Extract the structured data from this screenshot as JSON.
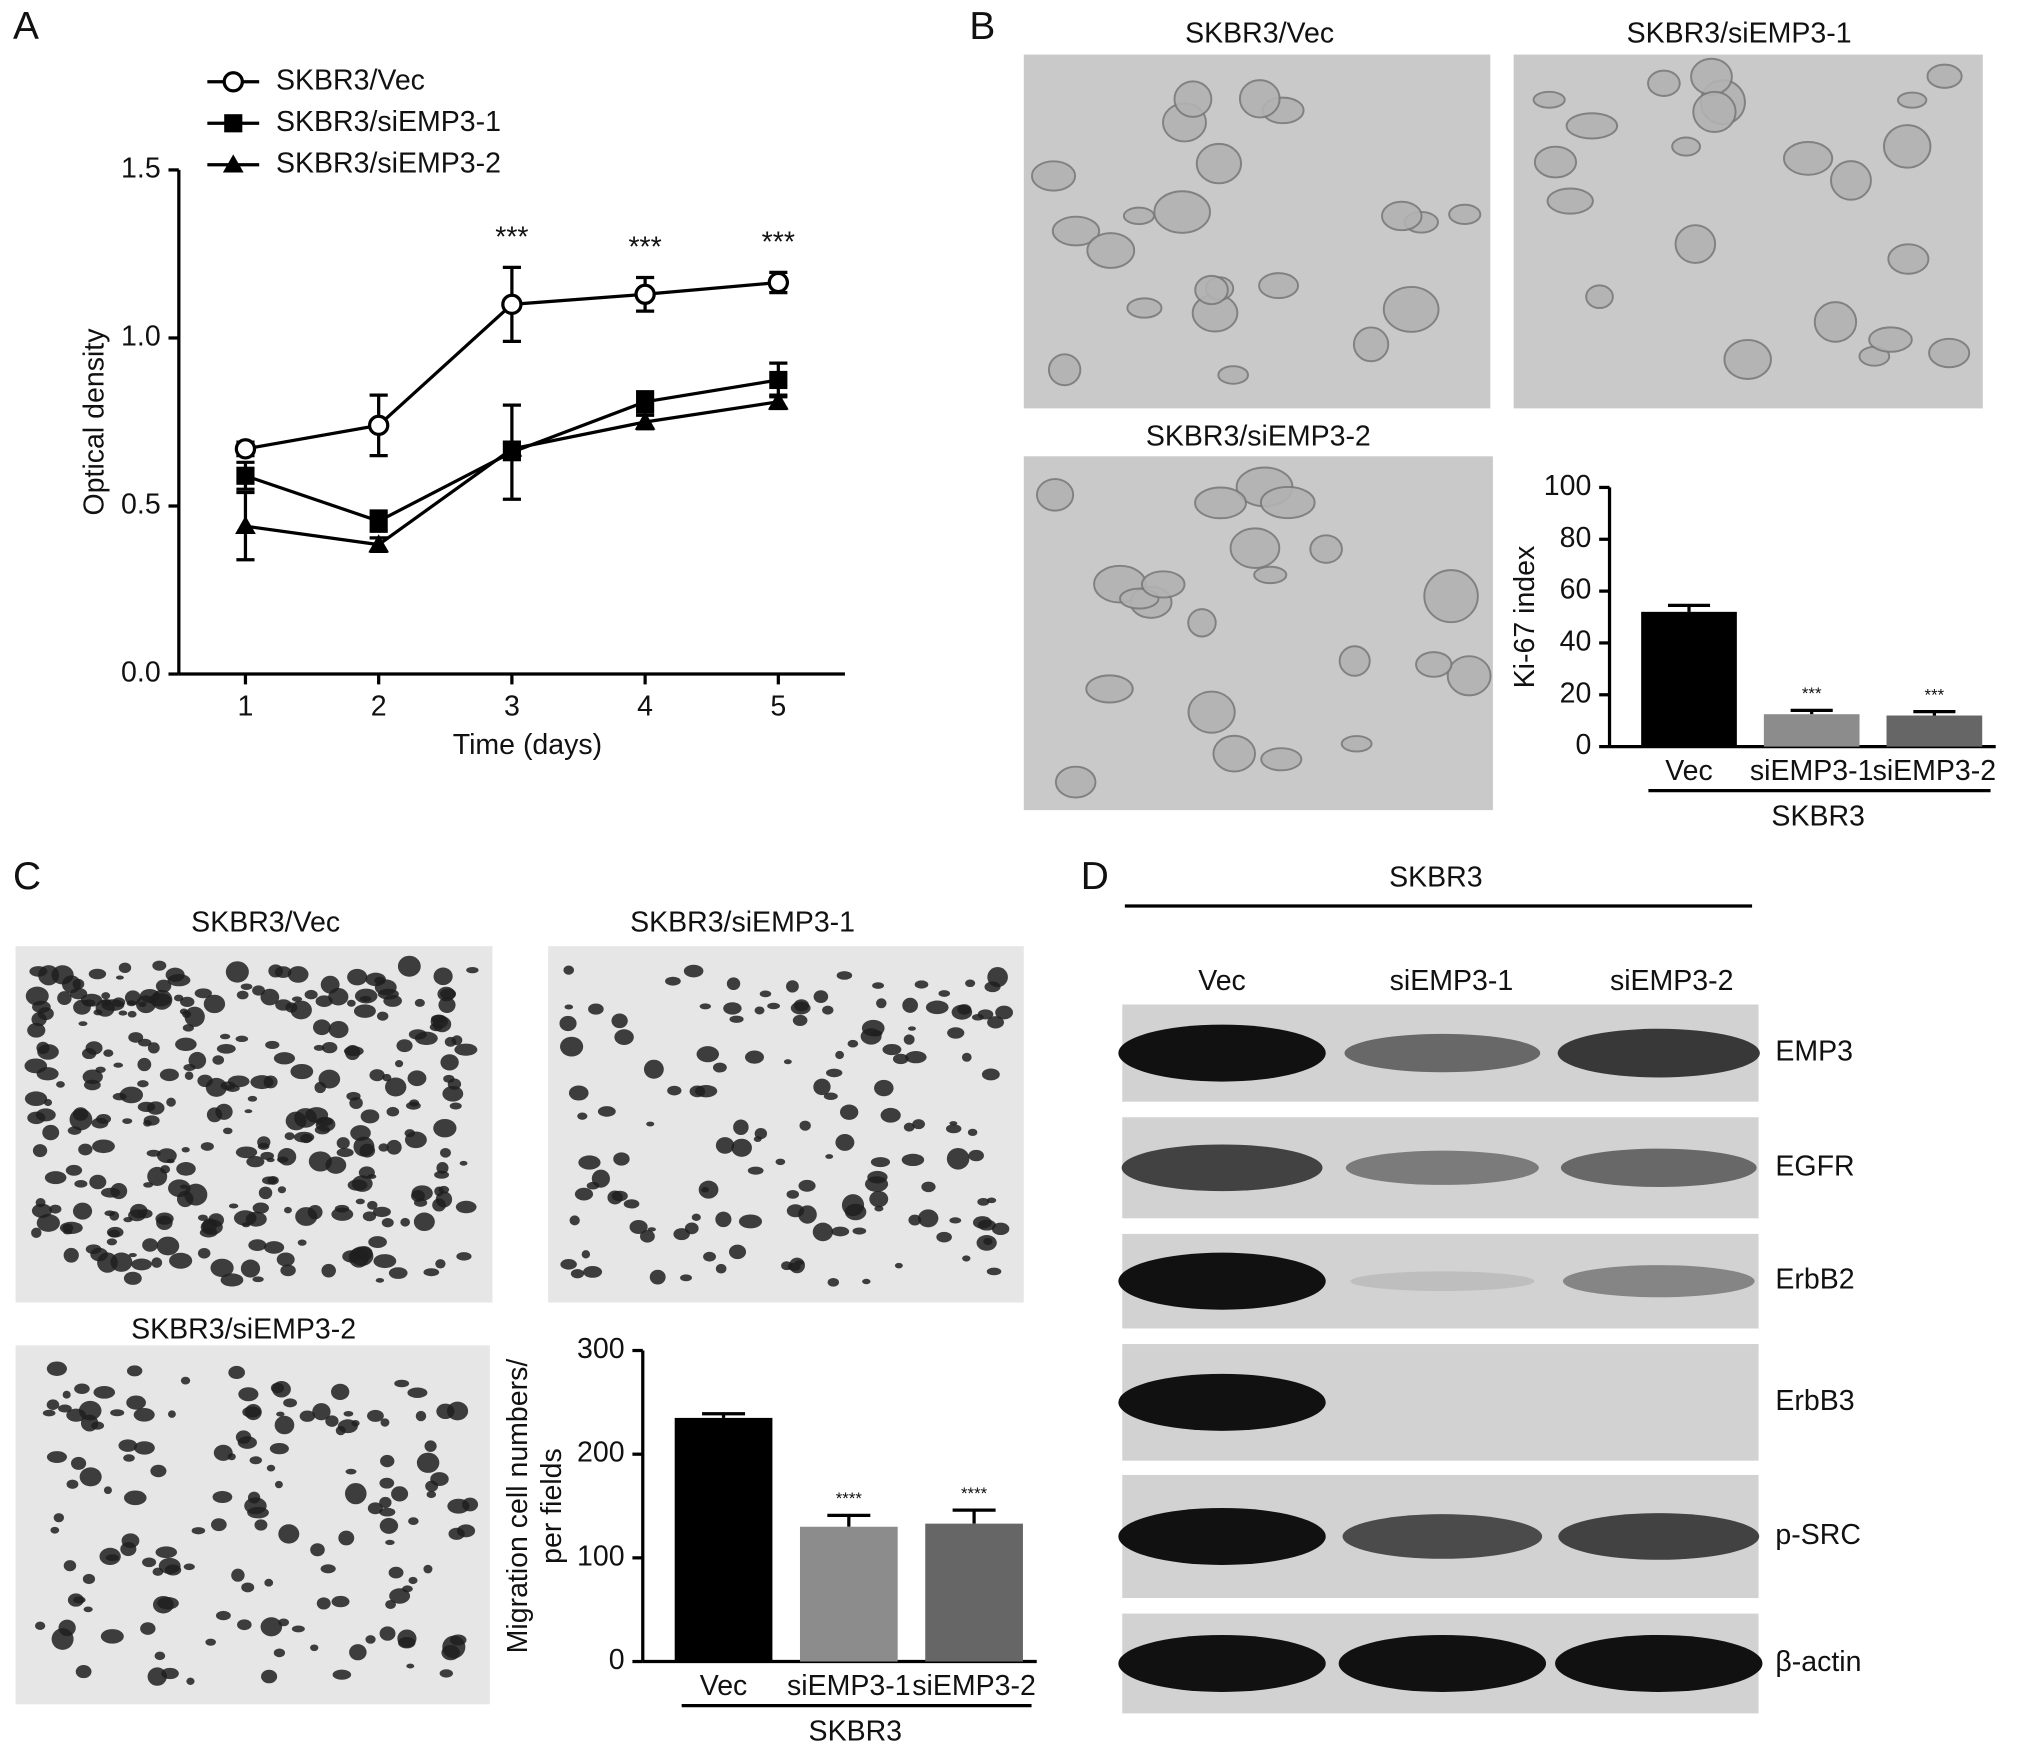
{
  "figure": {
    "panel_labels": [
      "A",
      "B",
      "C",
      "D"
    ]
  },
  "micrographs": {
    "B": [
      "SKBR3/Vec",
      "SKBR3/siEMP3-1",
      "SKBR3/siEMP3-2"
    ],
    "C": [
      "SKBR3/Vec",
      "SKBR3/siEMP3-1",
      "SKBR3/siEMP3-2"
    ]
  },
  "western_blot": {
    "group": "SKBR3",
    "lanes": [
      "Vec",
      "siEMP3-1",
      "siEMP3-2"
    ],
    "proteins": [
      "EMP3",
      "EGFR",
      "ErbB2",
      "ErbB3",
      "p-SRC",
      "β-actin"
    ]
  },
  "chart_data": [
    {
      "type": "line",
      "xlabel": "Time (days)",
      "ylabel": "Optical density",
      "x": [
        1,
        2,
        3,
        4,
        5
      ],
      "xlim": [
        0.5,
        5.5
      ],
      "xticks": [
        1,
        2,
        3,
        4,
        5
      ],
      "ylim": [
        0,
        1.5
      ],
      "yticks": [
        {
          "value": 0,
          "label": "0.0"
        },
        0.5,
        {
          "value": 1,
          "label": "1.0"
        },
        1.5
      ],
      "series": [
        {
          "name": "SKBR3/Vec",
          "color": "#000000",
          "marker": "open-circle",
          "values": [
            0.67,
            0.74,
            1.1,
            1.13,
            1.165
          ],
          "errors": [
            0.02,
            0.09,
            0.11,
            0.05,
            0.03
          ]
        },
        {
          "name": "SKBR3/siEMP3-1",
          "color": "#000000",
          "marker": "square",
          "values": [
            0.59,
            0.455,
            0.66,
            0.81,
            0.875
          ],
          "errors": [
            0.04,
            0.03,
            0.14,
            0.03,
            0.05
          ]
        },
        {
          "name": "SKBR3/siEMP3-2",
          "color": "#000000",
          "marker": "triangle",
          "values": [
            0.44,
            0.385,
            0.67,
            0.75,
            0.81
          ],
          "errors": [
            0.1,
            0.02,
            0.02,
            0.02,
            0.02
          ]
        }
      ],
      "annotations": [
        {
          "x": 3,
          "text": "***"
        },
        {
          "x": 4,
          "text": "***"
        },
        {
          "x": 5,
          "text": "***"
        }
      ]
    },
    {
      "type": "bar",
      "ylabel": "Ki-67 index",
      "categories": [
        "Vec",
        "siEMP3-1",
        "siEMP3-2"
      ],
      "values": [
        52,
        12.5,
        12
      ],
      "errors": [
        2.5,
        1.5,
        1.5
      ],
      "colors": [
        "#000000",
        "#8c8c8c",
        "#666666"
      ],
      "ylim": [
        0,
        100
      ],
      "yticks": [
        0,
        20,
        40,
        60,
        80,
        100
      ],
      "group_label": "SKBR3",
      "significance": [
        null,
        "***",
        "***"
      ]
    },
    {
      "type": "bar",
      "ylabel": [
        "Migration cell numbers/",
        "per fields"
      ],
      "categories": [
        "Vec",
        "siEMP3-1",
        "siEMP3-2"
      ],
      "values": [
        235,
        130,
        133
      ],
      "errors": [
        4,
        11,
        13
      ],
      "colors": [
        "#000000",
        "#8c8c8c",
        "#666666"
      ],
      "ylim": [
        0,
        300
      ],
      "yticks": [
        0,
        100,
        200,
        300
      ],
      "group_label": "SKBR3",
      "significance": [
        null,
        "****",
        "****"
      ]
    }
  ]
}
